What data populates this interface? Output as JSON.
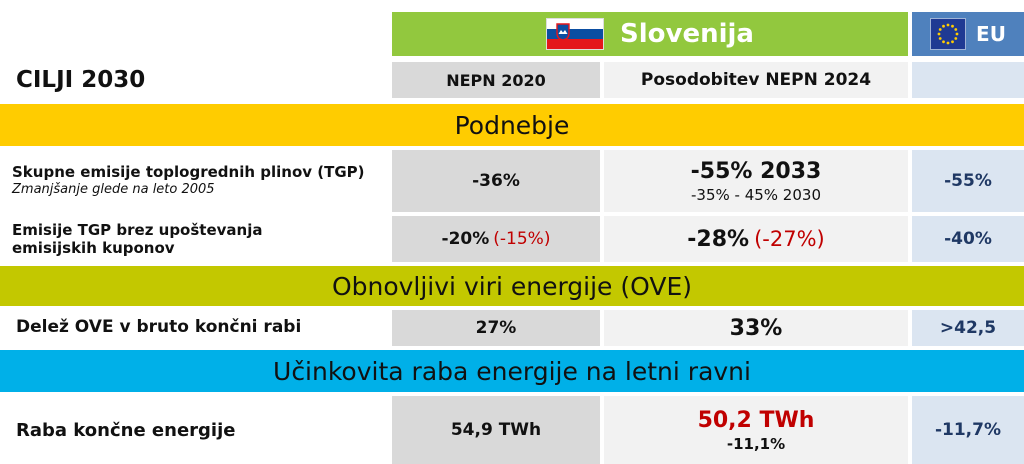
{
  "header": {
    "country": "Slovenija",
    "eu": "EU",
    "title": "CILJI 2030",
    "col1": "NEPN 2020",
    "col2": "Posodobitev NEPN 2024"
  },
  "sections": {
    "climate": "Podnebje",
    "renewables": "Obnovljivi viri energije (OVE)",
    "efficiency": "Učinkovita raba energije na letni ravni"
  },
  "rows": {
    "tgp": {
      "label": "Skupne emisije toplogrednih plinov (TGP)",
      "sublabel": "Zmanjšanje glede na leto 2005",
      "nepn2020": "-36%",
      "nepn2024_main": "-55% 2033",
      "nepn2024_sub": "-35% - 45% 2030",
      "eu": "-55%"
    },
    "tgp_ets": {
      "label_line1": "Emisije TGP brez upoštevanja",
      "label_line2": "emisijskih kuponov",
      "nepn2020": "-20%",
      "nepn2020_red": "(-15%)",
      "nepn2024": "-28%",
      "nepn2024_red": "(-27%)",
      "eu": "-40%"
    },
    "ove": {
      "label": "Delež OVE v bruto končni rabi",
      "nepn2020": "27%",
      "nepn2024": "33%",
      "eu": ">42,5"
    },
    "energy": {
      "label": "Raba končne energije",
      "nepn2020": "54,9 TWh",
      "nepn2024_main": "50,2 TWh",
      "nepn2024_sub": "-11,1%",
      "eu": "-11,7%"
    }
  },
  "colors": {
    "slovenia_header": "#92c83e",
    "eu_header": "#4f81bd",
    "climate_band": "#ffcc00",
    "renewables_band": "#c3c800",
    "efficiency_band": "#00b0e8",
    "highlight_red": "#c00000"
  },
  "icons": {
    "slovenia": "slovenia-flag-icon",
    "eu": "eu-flag-icon"
  }
}
